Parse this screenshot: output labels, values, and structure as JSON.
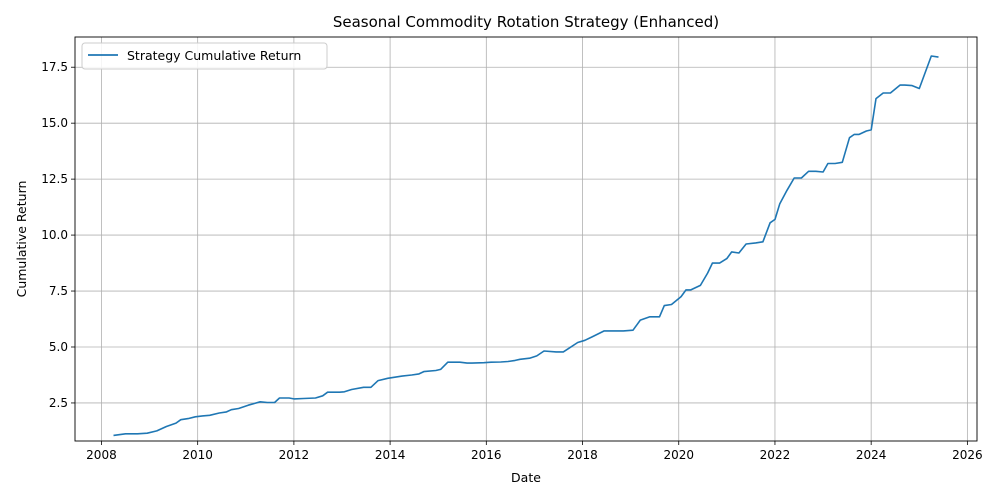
{
  "chart_data": {
    "type": "line",
    "title": "Seasonal Commodity Rotation Strategy (Enhanced)",
    "xlabel": "Date",
    "ylabel": "Cumulative Return",
    "xlim": [
      2007.45,
      2026.2
    ],
    "ylim": [
      0.8,
      18.85
    ],
    "x_ticks": [
      2008,
      2010,
      2012,
      2014,
      2016,
      2018,
      2020,
      2022,
      2024,
      2026
    ],
    "y_ticks": [
      2.5,
      5.0,
      7.5,
      10.0,
      12.5,
      15.0,
      17.5
    ],
    "y_tick_labels": [
      "2.5",
      "5.0",
      "7.5",
      "10.0",
      "12.5",
      "15.0",
      "17.5"
    ],
    "grid": true,
    "legend": "upper left",
    "color": "#1f77b4",
    "series": [
      {
        "name": "Strategy Cumulative Return",
        "x": [
          2008.25,
          2008.5,
          2008.75,
          2008.95,
          2009.15,
          2009.35,
          2009.55,
          2009.65,
          2009.8,
          2009.95,
          2010.1,
          2010.25,
          2010.45,
          2010.6,
          2010.7,
          2010.85,
          2011.05,
          2011.3,
          2011.45,
          2011.6,
          2011.7,
          2011.9,
          2012.0,
          2012.2,
          2012.45,
          2012.6,
          2012.7,
          2012.95,
          2013.05,
          2013.2,
          2013.45,
          2013.6,
          2013.75,
          2013.95,
          2014.1,
          2014.25,
          2014.45,
          2014.6,
          2014.7,
          2014.95,
          2015.05,
          2015.2,
          2015.45,
          2015.6,
          2015.7,
          2015.95,
          2016.1,
          2016.3,
          2016.45,
          2016.6,
          2016.7,
          2016.9,
          2017.05,
          2017.2,
          2017.45,
          2017.6,
          2017.7,
          2017.9,
          2018.05,
          2018.2,
          2018.45,
          2018.6,
          2018.85,
          2019.05,
          2019.2,
          2019.4,
          2019.6,
          2019.7,
          2019.85,
          2020.05,
          2020.15,
          2020.25,
          2020.45,
          2020.6,
          2020.7,
          2020.85,
          2021.0,
          2021.1,
          2021.25,
          2021.4,
          2021.6,
          2021.75,
          2021.9,
          2022.0,
          2022.1,
          2022.25,
          2022.4,
          2022.55,
          2022.7,
          2022.85,
          2023.0,
          2023.1,
          2023.25,
          2023.4,
          2023.55,
          2023.65,
          2023.75,
          2023.9,
          2024.0,
          2024.1,
          2024.25,
          2024.4,
          2024.6,
          2024.7,
          2024.85,
          2025.0,
          2025.25,
          2025.4
        ],
        "values": [
          1.05,
          1.12,
          1.12,
          1.15,
          1.25,
          1.45,
          1.6,
          1.75,
          1.8,
          1.88,
          1.92,
          1.95,
          2.05,
          2.1,
          2.2,
          2.25,
          2.4,
          2.55,
          2.52,
          2.52,
          2.72,
          2.72,
          2.68,
          2.7,
          2.72,
          2.82,
          2.98,
          2.98,
          3.0,
          3.1,
          3.2,
          3.2,
          3.5,
          3.6,
          3.65,
          3.7,
          3.75,
          3.8,
          3.9,
          3.95,
          4.0,
          4.32,
          4.32,
          4.28,
          4.28,
          4.3,
          4.32,
          4.33,
          4.35,
          4.4,
          4.45,
          4.5,
          4.6,
          4.82,
          4.78,
          4.78,
          4.92,
          5.2,
          5.3,
          5.45,
          5.72,
          5.72,
          5.72,
          5.75,
          6.2,
          6.35,
          6.35,
          6.85,
          6.9,
          7.25,
          7.55,
          7.55,
          7.75,
          8.3,
          8.75,
          8.75,
          8.95,
          9.25,
          9.2,
          9.6,
          9.65,
          9.7,
          10.55,
          10.7,
          11.4,
          12.0,
          12.55,
          12.55,
          12.85,
          12.85,
          12.82,
          13.2,
          13.2,
          13.25,
          14.35,
          14.5,
          14.5,
          14.65,
          14.7,
          16.1,
          16.35,
          16.35,
          16.7,
          16.7,
          16.68,
          16.55,
          18.0,
          17.95
        ]
      }
    ]
  }
}
